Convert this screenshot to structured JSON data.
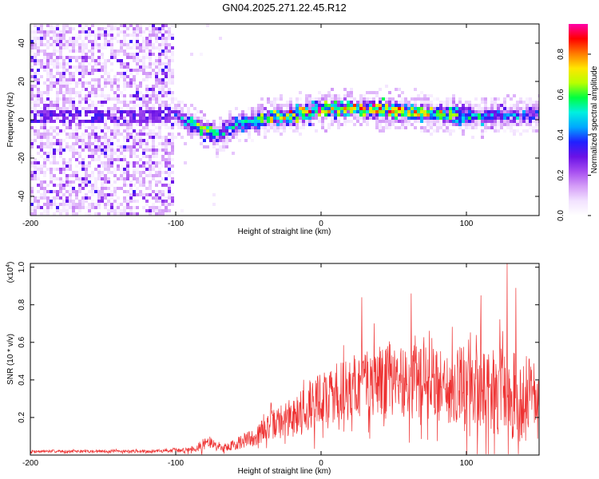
{
  "chart_data": [
    {
      "type": "heatmap",
      "title": "GN04.2025.271.22.45.R12",
      "xlabel": "Height of straight line (km)",
      "ylabel": "Frequency (Hz)",
      "xlim": [
        -200,
        150
      ],
      "ylim": [
        -50,
        50
      ],
      "xticks": [
        -200,
        -100,
        0,
        100
      ],
      "yticks": [
        -40,
        -20,
        0,
        20,
        40
      ],
      "colorbar": {
        "label": "Normalized spectral amplitude",
        "range": [
          0,
          0.95
        ],
        "ticks": [
          0.0,
          0.2,
          0.4,
          0.6,
          0.8
        ],
        "tick_labels": [
          "0.0",
          "0.2",
          "0.4",
          "0.6",
          "0.8"
        ]
      },
      "ridge": {
        "description": "dominant frequency band near 0 Hz",
        "x": [
          -110,
          -100,
          -90,
          -80,
          -70,
          -60,
          -50,
          -40,
          -20,
          0,
          20,
          40,
          60,
          80,
          100,
          120,
          150
        ],
        "frequency": [
          5,
          2,
          -2,
          -5,
          -8,
          -3,
          -1,
          0,
          2,
          5,
          6,
          5,
          4,
          3,
          2,
          2,
          3
        ],
        "peak_amplitude": [
          0.3,
          0.45,
          0.6,
          0.75,
          0.5,
          0.55,
          0.6,
          0.7,
          0.9,
          0.9,
          0.95,
          0.85,
          0.9,
          0.8,
          0.6,
          0.5,
          0.45
        ]
      }
    },
    {
      "type": "line",
      "xlabel": "Height of straight line (km)",
      "ylabel": "SNR (10 * v/v)",
      "scale_label": "(x10^4)",
      "scale_base": "(x10",
      "scale_exp": "4",
      "scale_close": ")",
      "color": "#ee3333",
      "xlim": [
        -200,
        150
      ],
      "ylim": [
        0,
        1.02
      ],
      "xticks": [
        -200,
        -100,
        0,
        100
      ],
      "yticks": [
        0.2,
        0.4,
        0.6,
        0.8,
        1.0
      ],
      "ytick_labels": [
        "0.2",
        "0.4",
        "0.6",
        "0.8",
        "1.0"
      ],
      "envelope": {
        "x": [
          -200,
          -120,
          -95,
          -85,
          -78,
          -72,
          -65,
          -55,
          -45,
          -35,
          -20,
          -10,
          0,
          15,
          30,
          50,
          70,
          90,
          110,
          125,
          140,
          150
        ],
        "mean": [
          0.02,
          0.02,
          0.025,
          0.04,
          0.07,
          0.05,
          0.04,
          0.07,
          0.1,
          0.16,
          0.2,
          0.25,
          0.3,
          0.34,
          0.38,
          0.4,
          0.38,
          0.37,
          0.35,
          0.33,
          0.3,
          0.3
        ],
        "spread": [
          0.01,
          0.01,
          0.015,
          0.03,
          0.05,
          0.03,
          0.03,
          0.05,
          0.07,
          0.1,
          0.14,
          0.18,
          0.2,
          0.22,
          0.24,
          0.26,
          0.27,
          0.28,
          0.3,
          0.32,
          0.3,
          0.3
        ]
      },
      "peaks": [
        {
          "x": 28,
          "y": 0.84
        },
        {
          "x": 62,
          "y": 0.86
        },
        {
          "x": 110,
          "y": 0.85
        },
        {
          "x": 128,
          "y": 1.02
        },
        {
          "x": 134,
          "y": 0.89
        }
      ]
    }
  ],
  "rainbow_stops": [
    "#ffffff",
    "#f2e2ff",
    "#d49cf7",
    "#a64df0",
    "#6a12e6",
    "#2020ff",
    "#00a8ff",
    "#00f0e0",
    "#00ff40",
    "#b8ff00",
    "#ffe600",
    "#ff7a00",
    "#ff0000",
    "#ff00aa"
  ]
}
